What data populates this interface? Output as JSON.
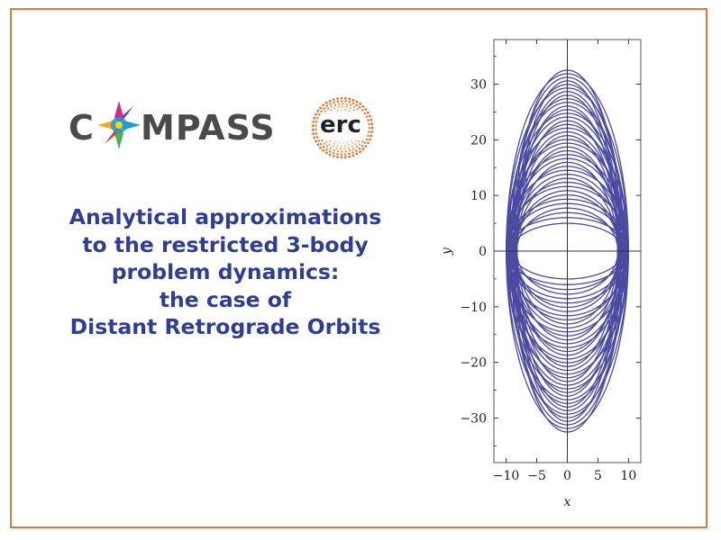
{
  "logos": {
    "compass": {
      "text_left": "C",
      "text_right": "MPASS",
      "colors": [
        "#d62a7d",
        "#1e9ad6",
        "#f5a623",
        "#4caf50",
        "#7b3fa0",
        "#e53935"
      ]
    },
    "erc": {
      "text": "erc",
      "dot_color": "#e8752f"
    }
  },
  "title": {
    "lines": [
      "Analytical approximations",
      "to the restricted 3-body",
      "problem dynamics:",
      "the case of",
      "Distant Retrograde Orbits"
    ],
    "color": "#2e3d97"
  },
  "chart_data": {
    "type": "line",
    "xlabel": "x",
    "ylabel": "y",
    "xlim": [
      -12,
      12
    ],
    "ylim": [
      -38,
      38
    ],
    "xticks": [
      -10,
      -5,
      0,
      5,
      10
    ],
    "yticks": [
      -30,
      -20,
      -10,
      0,
      10,
      20,
      30
    ],
    "grid": false,
    "line_color": "#3b3b9a",
    "orbit_family": {
      "x_amplitude_range": [
        8.2,
        10.0
      ],
      "y_amplitude_outer_range": [
        5.0,
        32.5
      ],
      "orbit_count": 40
    }
  }
}
